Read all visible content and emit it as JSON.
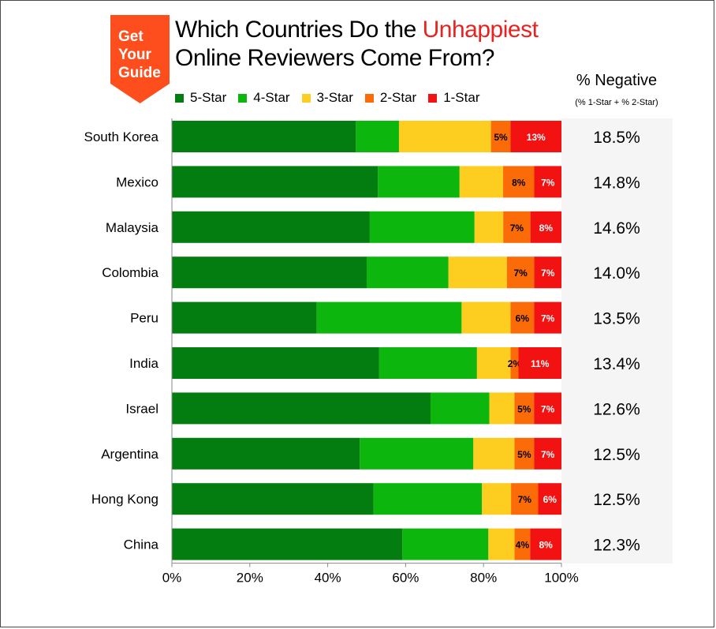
{
  "logo": {
    "line1": "Get",
    "line2": "Your",
    "line3": "Guide",
    "color": "#ff4e1e"
  },
  "title": {
    "part1": "Which Countries Do the ",
    "highlight": "Unhappiest",
    "line2": "Online Reviewers Come From?"
  },
  "negative_header": {
    "title": "% Negative",
    "subtitle": "(% 1-Star + % 2-Star)"
  },
  "colors": {
    "five": "#037d10",
    "four": "#0cb60c",
    "three": "#fdcd20",
    "two": "#fb6c08",
    "one": "#f21212",
    "accent": "#e8231f"
  },
  "chart_data": {
    "type": "bar",
    "orientation": "horizontal",
    "stacked": true,
    "categories": [
      "South Korea",
      "Mexico",
      "Malaysia",
      "Colombia",
      "Peru",
      "India",
      "Israel",
      "Argentina",
      "Hong Kong",
      "China"
    ],
    "series": [
      {
        "name": "5-Star",
        "values": [
          47,
          53,
          51,
          50,
          37,
          53,
          66,
          48,
          52,
          59
        ]
      },
      {
        "name": "4-Star",
        "values": [
          11,
          21,
          27,
          21,
          37,
          25,
          15,
          29,
          28,
          22
        ]
      },
      {
        "name": "3-Star",
        "values": [
          23.5,
          11.2,
          7.4,
          15,
          12.5,
          8.6,
          6.4,
          10.5,
          7.5,
          6.7
        ]
      },
      {
        "name": "2-Star",
        "values": [
          5,
          8,
          7,
          7,
          6,
          2,
          5,
          5,
          7,
          4
        ]
      },
      {
        "name": "1-Star",
        "values": [
          13,
          7,
          8,
          7,
          7,
          11,
          7,
          7,
          6,
          8
        ]
      }
    ],
    "segment_labels": {
      "2-Star": [
        "5%",
        "8%",
        "7%",
        "7%",
        "6%",
        "2%",
        "5%",
        "5%",
        "7%",
        "4%"
      ],
      "1-Star": [
        "13%",
        "7%",
        "8%",
        "7%",
        "7%",
        "11%",
        "7%",
        "7%",
        "6%",
        "8%"
      ]
    },
    "negative_pct": [
      "18.5%",
      "14.8%",
      "14.6%",
      "14.0%",
      "13.5%",
      "13.4%",
      "12.6%",
      "12.5%",
      "12.5%",
      "12.3%"
    ],
    "x_ticks": [
      "0%",
      "20%",
      "40%",
      "60%",
      "80%",
      "100%"
    ],
    "xlim": [
      0,
      100
    ],
    "legend_position": "top",
    "grid": false
  }
}
